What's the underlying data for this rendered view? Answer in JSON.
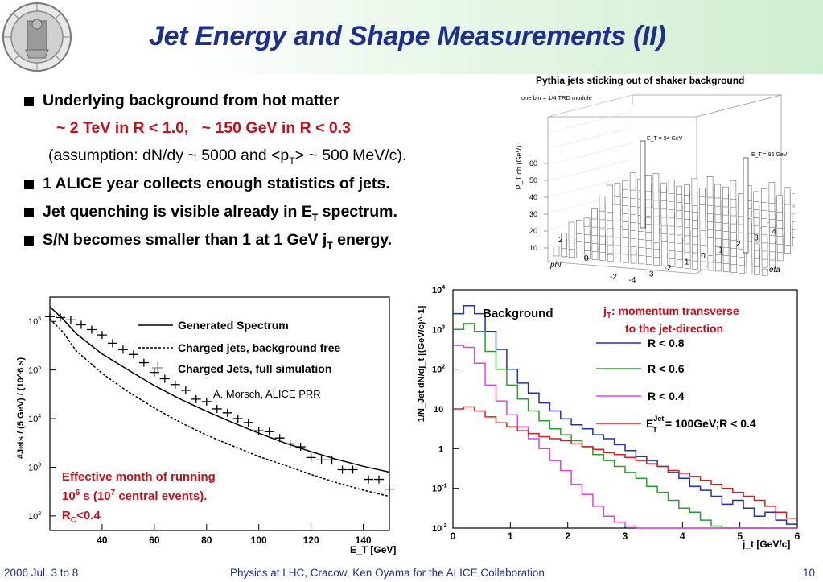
{
  "slide": {
    "title": "Jet Energy and Shape Measurements (II)",
    "bullets": [
      {
        "text": "Underlying background from hot matter"
      },
      {
        "text": "1 ALICE year collects enough statistics of jets."
      },
      {
        "pre": "Jet quenching is visible already in E",
        "sub": "T",
        "post": " spectrum."
      },
      {
        "pre": "S/N becomes smaller than 1 at 1 GeV j",
        "sub": "T",
        "post": " energy."
      }
    ],
    "sub_red_a": "~ 2 TeV in R < 1.0,",
    "sub_red_b": "~ 150 GeV in R < 0.3",
    "assumption_pre": "(assumption: dN/dy ~ 5000 and <p",
    "assumption_sub": "T",
    "assumption_post": "> ~ 500 MeV/c)."
  },
  "footer": {
    "date": "2006 Jul. 3 to 8",
    "conference": "Physics at LHC, Cracow, Ken Oyama for the ALICE Collaboration",
    "page": "10"
  },
  "colors": {
    "title": "#1f2f8f",
    "accent_red": "#c0121b",
    "header_green": "#cfeecf"
  },
  "chart_data": [
    {
      "type": "other",
      "title": "Pythia jets sticking out of shaker background",
      "note": "one bin = 1/4 TRD module",
      "zlabel": "P_T ch (GeV)",
      "zticks": [
        "10",
        "20",
        "30",
        "40",
        "50",
        "60"
      ],
      "phi_label": "phi",
      "phi_ticks": [
        "-2",
        "0",
        "2"
      ],
      "eta_label": "eta",
      "eta_ticks": [
        "-4",
        "-3",
        "-2",
        "-1",
        "0",
        "1",
        "2",
        "3",
        "4"
      ],
      "peaks": [
        {
          "label": "E_T = 94 GeV"
        },
        {
          "label": "E_T = 96 GeV"
        }
      ]
    },
    {
      "type": "line",
      "xlabel": "E_T [GeV]",
      "ylabel": "#Jets / (5 GeV) / (10^6 s)",
      "xticks": [
        "40",
        "60",
        "80",
        "100",
        "120",
        "140"
      ],
      "xlim": [
        20,
        150
      ],
      "ylog": true,
      "ylim_exp": [
        1.7,
        6.5
      ],
      "yticks": [
        "2",
        "3",
        "4",
        "5",
        "6"
      ],
      "series": [
        {
          "name": "Generated Spectrum",
          "style": "solid",
          "x": [
            20,
            25,
            30,
            40,
            50,
            60,
            70,
            80,
            90,
            100,
            110,
            120,
            130,
            140,
            150
          ],
          "log10y": [
            6.3,
            6.05,
            5.75,
            5.33,
            5.0,
            4.68,
            4.4,
            4.15,
            3.92,
            3.7,
            3.5,
            3.32,
            3.16,
            3.02,
            2.9
          ]
        },
        {
          "name": "Charged jets, background free",
          "style": "dotted",
          "x": [
            20,
            25,
            30,
            40,
            50,
            60,
            70,
            80,
            90,
            100,
            110,
            120,
            130,
            140,
            150
          ],
          "log10y": [
            6.05,
            5.78,
            5.4,
            4.93,
            4.55,
            4.22,
            3.92,
            3.66,
            3.44,
            3.22,
            3.04,
            2.85,
            2.68,
            2.53,
            2.4
          ]
        },
        {
          "name": "Charged Jets, full simulation",
          "style": "crosses",
          "x": [
            20,
            24,
            28,
            32,
            36,
            40,
            44,
            48,
            52,
            56,
            60,
            64,
            68,
            72,
            76,
            80,
            84,
            88,
            92,
            96,
            100,
            104,
            108,
            112,
            116,
            120,
            124,
            128,
            132,
            136,
            142,
            146,
            150
          ],
          "log10y": [
            6.1,
            6.08,
            6.03,
            5.93,
            5.83,
            5.72,
            5.55,
            5.42,
            5.32,
            5.15,
            4.95,
            4.82,
            4.7,
            4.58,
            4.4,
            4.35,
            4.2,
            4.12,
            4.0,
            3.92,
            3.75,
            3.73,
            3.6,
            3.48,
            3.42,
            3.2,
            3.15,
            3.15,
            2.95,
            2.95,
            2.75,
            2.75,
            2.55
          ]
        }
      ],
      "credit": "A. Morsch, ALICE PRR",
      "note_lines": [
        {
          "text": "Effective month of running"
        },
        {
          "a": "10",
          "b": "6",
          "c": " s (10",
          "d": "7",
          "e": " central events)."
        },
        {
          "a": "R",
          "b": "C",
          "c": "<0.4"
        }
      ]
    },
    {
      "type": "line",
      "xlabel": "j_t [GeV/c]",
      "ylabel": "1/N_Jet dN/dj_t [(GeV/c)^-1]",
      "xticks": [
        "0",
        "1",
        "2",
        "3",
        "4",
        "5",
        "6"
      ],
      "xlim": [
        0,
        6
      ],
      "ylog": true,
      "ylim_exp": [
        -2,
        4
      ],
      "yticks": [
        "10^-2",
        "10^-1",
        "1",
        "10",
        "10^2",
        "10^3",
        "10^4"
      ],
      "panel_label": "Background",
      "annotation_pre": "j",
      "annotation_sub": "T",
      "annotation_mid": ": momentum transverse",
      "annotation_line2": "to the jet-direction",
      "series": [
        {
          "name": "R  <  0.8",
          "color": "#1f30b0",
          "log10y": [
            3.4,
            3.6,
            3.4,
            2.95,
            2.5,
            2.0,
            1.65,
            1.4,
            1.15,
            0.95,
            0.75,
            0.6,
            0.5,
            0.35,
            0.25,
            0.1,
            -0.05,
            -0.2,
            -0.3,
            -0.45,
            -0.6,
            -0.75,
            -0.95,
            -1.05,
            -1.2,
            -1.4,
            -1.3,
            -1.5,
            -1.7,
            -1.6,
            -1.8,
            -1.9
          ]
        },
        {
          "name": "R  <  0.6",
          "color": "#2aa02a",
          "log10y": [
            3.0,
            3.15,
            2.95,
            2.45,
            2.0,
            1.6,
            1.25,
            0.95,
            0.7,
            0.5,
            0.35,
            0.2,
            0.05,
            -0.15,
            -0.3,
            -0.45,
            -0.6,
            -0.75,
            -0.95,
            -1.1,
            -1.3,
            -1.5,
            -1.6,
            -1.8,
            -1.95,
            -2.0,
            -2.0,
            -2.0,
            -2.0,
            -2.0,
            -2.0,
            -2.0
          ]
        },
        {
          "name": "R  <  0.4",
          "color": "#e040e0",
          "log10y": [
            2.6,
            2.55,
            2.15,
            1.6,
            1.2,
            0.85,
            0.55,
            0.25,
            0.0,
            -0.3,
            -0.55,
            -0.9,
            -1.15,
            -1.45,
            -1.7,
            -1.85,
            -1.95,
            -2.0,
            -2.0,
            -2.0,
            -2.0,
            -2.0,
            -2.0,
            -2.0,
            -2.0,
            -2.0,
            -2.0,
            -2.0,
            -2.0,
            -2.0,
            -2.0,
            -2.0
          ]
        },
        {
          "name": "100GeV;R  <  0.4",
          "label_pre": "E",
          "label_sup": "Jet",
          "label_sub": "T",
          "label_post": "=  100GeV;R  <  0.4",
          "color": "#d02020",
          "log10y": [
            1.0,
            1.05,
            0.95,
            0.8,
            0.65,
            0.55,
            0.45,
            0.38,
            0.3,
            0.25,
            0.2,
            0.12,
            0.05,
            -0.02,
            -0.1,
            -0.15,
            -0.22,
            -0.3,
            -0.38,
            -0.45,
            -0.55,
            -0.62,
            -0.7,
            -0.8,
            -0.9,
            -1.0,
            -1.1,
            -1.2,
            -1.3,
            -1.45,
            -1.6,
            -1.75
          ]
        }
      ]
    }
  ]
}
